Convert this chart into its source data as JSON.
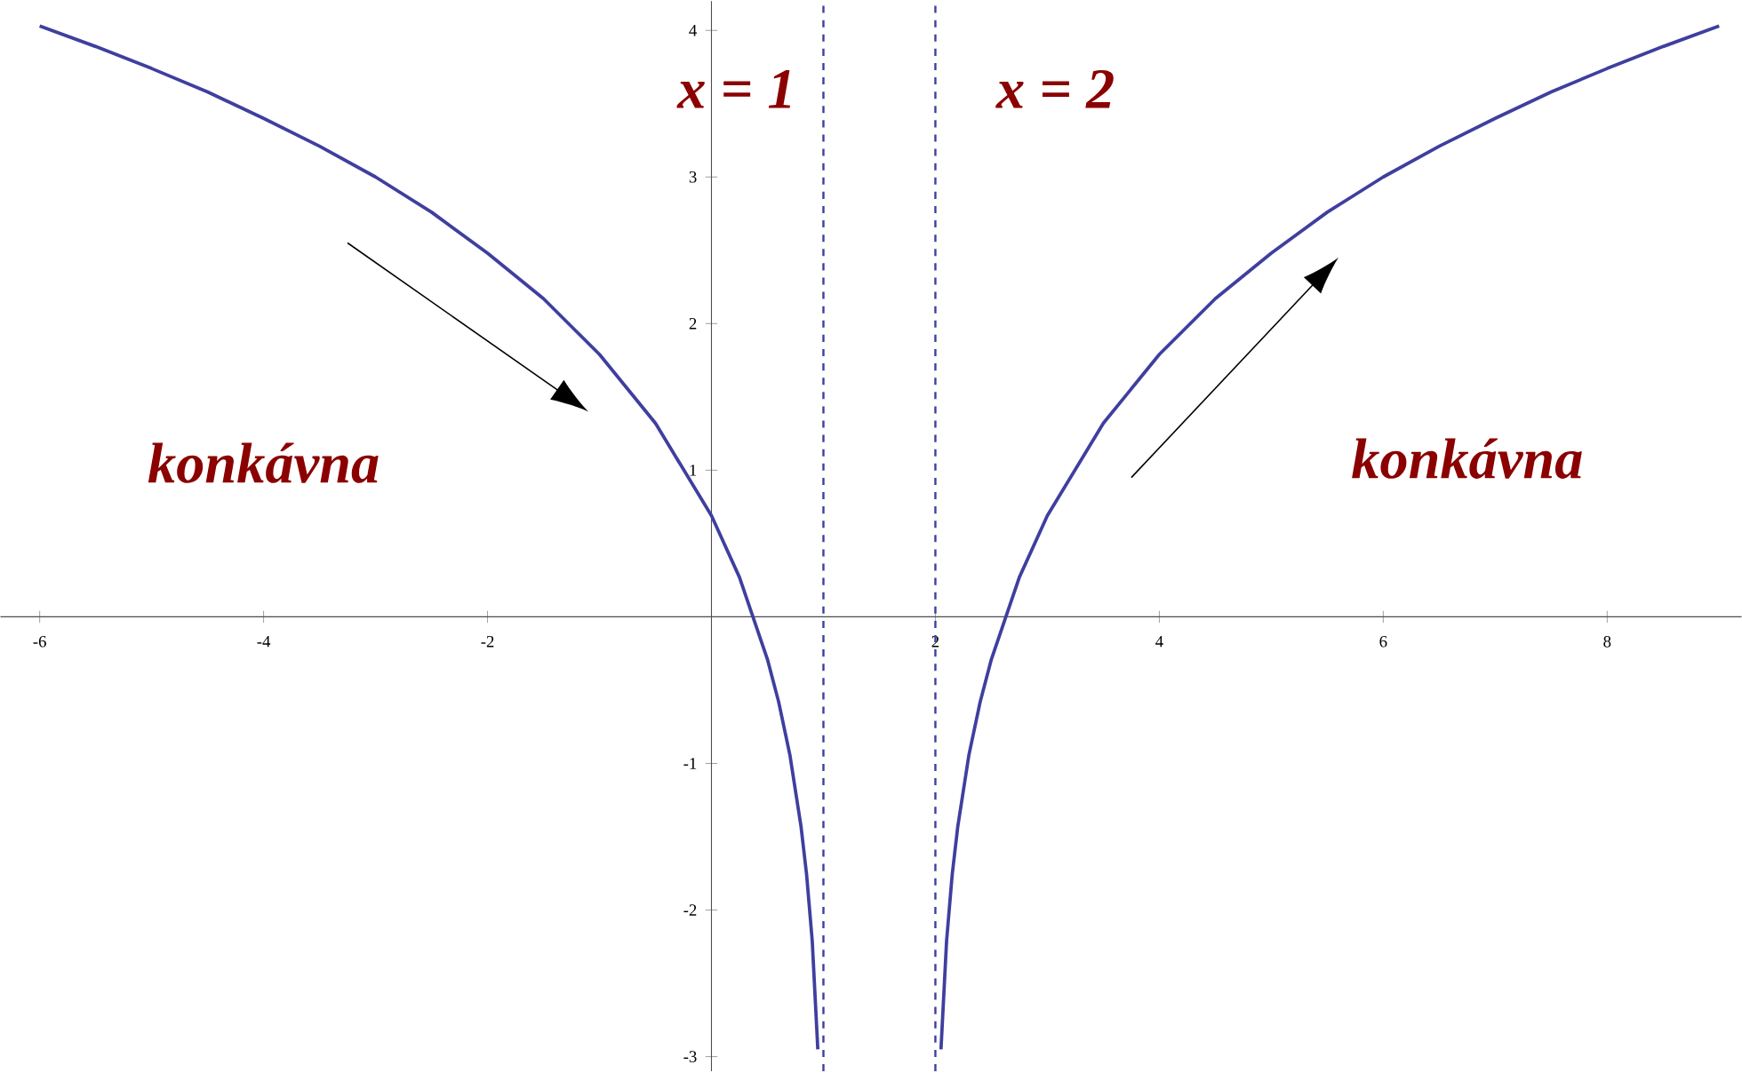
{
  "chart_data": {
    "type": "line",
    "xlim": [
      -6.35,
      9.2
    ],
    "ylim": [
      -3.1,
      4.2
    ],
    "xticks": [
      -6,
      -4,
      -2,
      2,
      4,
      6,
      8
    ],
    "yticks": [
      -3,
      -2,
      -1,
      1,
      2,
      3,
      4
    ],
    "grid": false,
    "marker": "none",
    "line_style": "solid",
    "series": [
      {
        "color": "#3f3f9f",
        "x": [
          -6,
          -5.5,
          -5,
          -4.5,
          -4,
          -3.5,
          -3,
          -2.5,
          -2,
          -1.5,
          -1,
          -0.5,
          0,
          0.25,
          0.5,
          0.6,
          0.7,
          0.8,
          0.85,
          0.9,
          0.95
        ],
        "values": [
          4.03,
          3.89,
          3.74,
          3.58,
          3.4,
          3.21,
          3,
          2.76,
          2.48,
          2.17,
          1.79,
          1.32,
          0.69,
          0.27,
          -0.29,
          -0.58,
          -0.94,
          -1.43,
          -1.76,
          -2.21,
          -2.95
        ]
      },
      {
        "color": "#3f3f9f",
        "x": [
          2.05,
          2.1,
          2.15,
          2.2,
          2.3,
          2.4,
          2.5,
          2.75,
          3,
          3.5,
          4,
          4.5,
          5,
          5.5,
          6,
          6.5,
          7,
          7.5,
          8,
          8.5,
          9
        ],
        "values": [
          -2.95,
          -2.21,
          -1.76,
          -1.43,
          -0.94,
          -0.58,
          -0.29,
          0.27,
          0.69,
          1.32,
          1.79,
          2.17,
          2.48,
          2.76,
          3,
          3.21,
          3.4,
          3.58,
          3.74,
          3.89,
          4.03
        ]
      }
    ],
    "ref_lines": [
      {
        "axis": "x",
        "value": 1,
        "label": "x = 1",
        "color": "#3f3f9f",
        "line_style": "dashed"
      },
      {
        "axis": "x",
        "value": 2,
        "label": "x = 2",
        "color": "#3f3f9f",
        "line_style": "dashed"
      }
    ],
    "annotations": [
      "konkávna",
      "konkávna"
    ]
  }
}
